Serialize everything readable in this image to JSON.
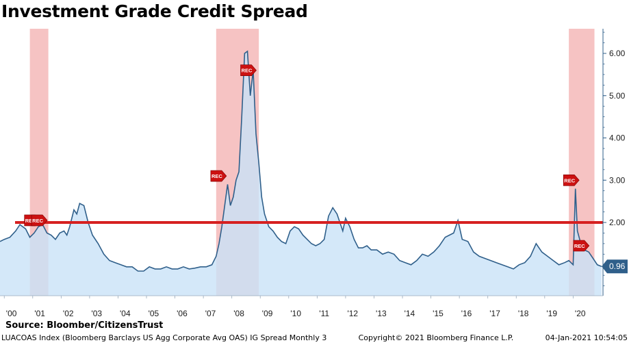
{
  "chart_data": {
    "type": "area",
    "title": "Investment Grade Credit Spread",
    "xlabel": "",
    "ylabel": "",
    "ylim": [
      0,
      6.5
    ],
    "y_ticks": [
      "2.00",
      "3.00",
      "4.00",
      "5.00",
      "6.00"
    ],
    "x_ticks": [
      "'00",
      "'01",
      "'02",
      "'03",
      "'04",
      "'05",
      "'06",
      "'07",
      "'08",
      "'09",
      "'10",
      "'11",
      "'12",
      "'13",
      "'14",
      "'15",
      "'16",
      "'17",
      "'18",
      "'19",
      "'20"
    ],
    "grid": false,
    "series": [
      {
        "values_note": "",
        "x": [
          1999.85,
          2000.0,
          2000.2,
          2000.4,
          2000.55,
          2000.75,
          2000.9,
          2001.05,
          2001.2,
          2001.35,
          2001.5,
          2001.65,
          2001.8,
          2001.95,
          2002.1,
          2002.2,
          2002.3,
          2002.45,
          2002.55,
          2002.65,
          2002.8,
          2002.95,
          2003.1,
          2003.3,
          2003.5,
          2003.7,
          2003.9,
          2004.1,
          2004.3,
          2004.5,
          2004.7,
          2004.9,
          2005.1,
          2005.3,
          2005.5,
          2005.7,
          2005.9,
          2006.1,
          2006.3,
          2006.5,
          2006.7,
          2006.9,
          2007.1,
          2007.3,
          2007.45,
          2007.55,
          2007.65,
          2007.75,
          2007.85,
          2007.95,
          2008.05,
          2008.15,
          2008.25,
          2008.35,
          2008.45,
          2008.55,
          2008.65,
          2008.75,
          2008.85,
          2008.95,
          2009.05,
          2009.15,
          2009.3,
          2009.45,
          2009.6,
          2009.75,
          2009.9,
          2010.05,
          2010.2,
          2010.35,
          2010.5,
          2010.65,
          2010.8,
          2010.95,
          2011.1,
          2011.25,
          2011.4,
          2011.55,
          2011.7,
          2011.8,
          2011.9,
          2012.0,
          2012.15,
          2012.3,
          2012.45,
          2012.6,
          2012.75,
          2012.9,
          2013.1,
          2013.3,
          2013.5,
          2013.7,
          2013.9,
          2014.1,
          2014.3,
          2014.5,
          2014.7,
          2014.9,
          2015.1,
          2015.3,
          2015.5,
          2015.65,
          2015.8,
          2015.95,
          2016.1,
          2016.3,
          2016.5,
          2016.7,
          2016.9,
          2017.1,
          2017.3,
          2017.5,
          2017.7,
          2017.9,
          2018.1,
          2018.3,
          2018.5,
          2018.7,
          2018.9,
          2019.1,
          2019.3,
          2019.5,
          2019.7,
          2019.85,
          2020.0,
          2020.08,
          2020.15,
          2020.25,
          2020.4,
          2020.55,
          2020.7,
          2020.85,
          2021.0
        ],
        "values": [
          1.55,
          1.6,
          1.65,
          1.8,
          1.95,
          1.85,
          1.65,
          1.75,
          1.9,
          1.95,
          1.75,
          1.7,
          1.6,
          1.75,
          1.8,
          1.7,
          1.9,
          2.3,
          2.2,
          2.45,
          2.4,
          2.0,
          1.7,
          1.5,
          1.25,
          1.1,
          1.05,
          1.0,
          0.95,
          0.95,
          0.85,
          0.85,
          0.95,
          0.9,
          0.9,
          0.95,
          0.9,
          0.9,
          0.95,
          0.9,
          0.92,
          0.95,
          0.95,
          1.0,
          1.2,
          1.5,
          1.9,
          2.4,
          2.9,
          2.4,
          2.6,
          3.0,
          3.2,
          4.5,
          6.0,
          6.05,
          5.0,
          5.6,
          4.1,
          3.4,
          2.6,
          2.2,
          1.9,
          1.8,
          1.65,
          1.55,
          1.5,
          1.8,
          1.9,
          1.85,
          1.7,
          1.6,
          1.5,
          1.45,
          1.5,
          1.6,
          2.15,
          2.35,
          2.2,
          2.0,
          1.8,
          2.1,
          1.9,
          1.6,
          1.4,
          1.4,
          1.45,
          1.35,
          1.35,
          1.25,
          1.3,
          1.25,
          1.1,
          1.05,
          1.0,
          1.1,
          1.25,
          1.2,
          1.3,
          1.45,
          1.65,
          1.7,
          1.75,
          2.05,
          1.6,
          1.55,
          1.3,
          1.2,
          1.15,
          1.1,
          1.05,
          1.0,
          0.95,
          0.9,
          1.0,
          1.05,
          1.2,
          1.5,
          1.3,
          1.2,
          1.1,
          1.0,
          1.05,
          1.1,
          1.0,
          2.8,
          1.8,
          1.55,
          1.35,
          1.3,
          1.15,
          1.0,
          0.96
        ]
      }
    ],
    "threshold": 2.0,
    "recessions": [
      {
        "start": 2000.9,
        "end": 2001.55
      },
      {
        "start": 2007.45,
        "end": 2008.95
      },
      {
        "start": 2019.85,
        "end": 2020.75
      }
    ],
    "rec_markers": [
      {
        "x": 2000.95,
        "y": 2.05,
        "label": "REC"
      },
      {
        "x": 2001.2,
        "y": 2.05,
        "label": "REC"
      },
      {
        "x": 2007.5,
        "y": 3.1,
        "label": "REC"
      },
      {
        "x": 2008.55,
        "y": 5.6,
        "label": "REC"
      },
      {
        "x": 2019.9,
        "y": 3.0,
        "label": "REC"
      },
      {
        "x": 2020.25,
        "y": 1.45,
        "label": "REC"
      }
    ],
    "last_value_label": "0.96",
    "last_value": 0.96
  },
  "source_text": "Source: Bloomber/CitizensTrust",
  "footer": {
    "index_desc": "LUACOAS Index (Bloomberg Barclays US Agg Corporate Avg OAS) IG Spread  Monthly 3",
    "copyright": "Copyright© 2021 Bloomberg Finance L.P.",
    "timestamp": "04-Jan-2021 10:54:05"
  },
  "colors": {
    "area_fill": "#c9e2f8",
    "line": "#2f5f8a",
    "recession": "#f5b8b8",
    "threshold": "#d62020",
    "rec_marker": "#cc1111",
    "last_label": "#2f5f8a",
    "axis": "#2f5f8a"
  }
}
